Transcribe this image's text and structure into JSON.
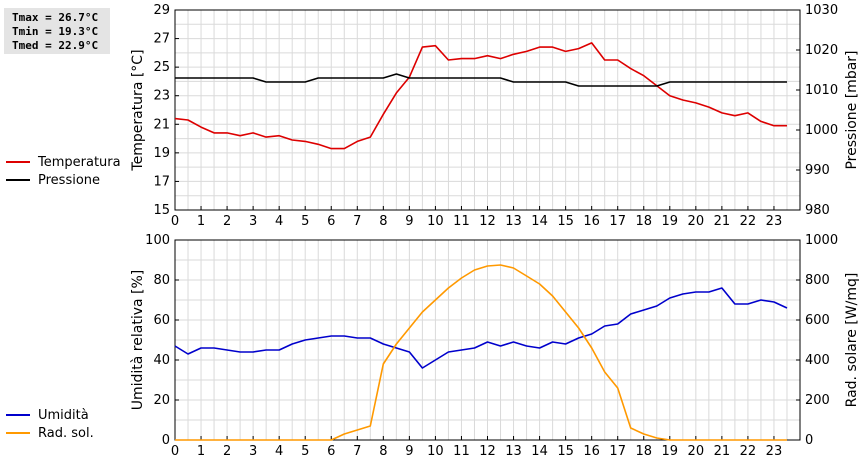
{
  "stats": {
    "tmax": "Tmax = 26.7°C",
    "tmin": "Tmin = 19.3°C",
    "tmed": "Tmed = 22.9°C"
  },
  "chart_data": [
    {
      "type": "line",
      "xlim": [
        0,
        24
      ],
      "x_ticks": [
        "0",
        "1",
        "2",
        "3",
        "4",
        "5",
        "6",
        "7",
        "8",
        "9",
        "10",
        "11",
        "12",
        "13",
        "14",
        "15",
        "16",
        "17",
        "18",
        "19",
        "20",
        "21",
        "22",
        "23"
      ],
      "ylabel_left": "Temperatura [°C]",
      "ylabel_right": "Pressione [mbar]",
      "ylim_left": [
        15,
        29
      ],
      "yticks_left": [
        15,
        17,
        19,
        21,
        23,
        25,
        27,
        29
      ],
      "ylim_right": [
        980,
        1030
      ],
      "yticks_right": [
        980,
        990,
        1000,
        1010,
        1020,
        1030
      ],
      "grid": true,
      "legend_position": "left",
      "series": [
        {
          "name": "Temperatura",
          "axis": "left",
          "color": "#dd0000",
          "x": [
            0,
            0.5,
            1,
            1.5,
            2,
            2.5,
            3,
            3.5,
            4,
            4.5,
            5,
            5.5,
            6,
            6.5,
            7,
            7.5,
            8,
            8.5,
            9,
            9.5,
            10,
            10.5,
            11,
            11.5,
            12,
            12.5,
            13,
            13.5,
            14,
            14.5,
            15,
            15.5,
            16,
            16.5,
            17,
            17.5,
            18,
            18.5,
            19,
            19.5,
            20,
            20.5,
            21,
            21.5,
            22,
            22.5,
            23,
            23.5
          ],
          "y": [
            21.4,
            21.3,
            20.8,
            20.4,
            20.4,
            20.2,
            20.4,
            20.1,
            20.2,
            19.9,
            19.8,
            19.6,
            19.3,
            19.3,
            19.8,
            20.1,
            21.7,
            23.2,
            24.3,
            26.4,
            26.5,
            25.5,
            25.6,
            25.6,
            25.8,
            25.6,
            25.9,
            26.1,
            26.4,
            26.4,
            26.1,
            26.3,
            26.7,
            25.5,
            25.5,
            24.9,
            24.4,
            23.7,
            23.0,
            22.7,
            22.5,
            22.2,
            21.8,
            21.6,
            21.8,
            21.2,
            20.9,
            20.9
          ]
        },
        {
          "name": "Pressione",
          "axis": "right",
          "color": "#000000",
          "x": [
            0,
            1,
            2,
            3,
            3.5,
            4,
            4.5,
            5,
            5.5,
            6,
            6.5,
            7,
            7.5,
            8,
            8.5,
            9,
            9.5,
            10,
            10.5,
            11,
            11.5,
            12,
            12.5,
            13,
            13.5,
            14,
            14.5,
            15,
            15.5,
            16,
            16.5,
            17,
            17.5,
            18,
            18.5,
            19,
            19.5,
            20,
            20.5,
            21,
            21.5,
            22,
            22.5,
            23,
            23.5
          ],
          "y": [
            1013,
            1013,
            1013,
            1013,
            1012,
            1012,
            1012,
            1012,
            1013,
            1013,
            1013,
            1013,
            1013,
            1013,
            1014,
            1013,
            1013,
            1013,
            1013,
            1013,
            1013,
            1013,
            1013,
            1012,
            1012,
            1012,
            1012,
            1012,
            1011,
            1011,
            1011,
            1011,
            1011,
            1011,
            1011,
            1012,
            1012,
            1012,
            1012,
            1012,
            1012,
            1012,
            1012,
            1012,
            1012
          ]
        }
      ]
    },
    {
      "type": "line",
      "xlim": [
        0,
        24
      ],
      "x_ticks": [
        "0",
        "1",
        "2",
        "3",
        "4",
        "5",
        "6",
        "7",
        "8",
        "9",
        "10",
        "11",
        "12",
        "13",
        "14",
        "15",
        "16",
        "17",
        "18",
        "19",
        "20",
        "21",
        "22",
        "23"
      ],
      "ylabel_left": "Umidità relativa [%]",
      "ylabel_right": "Rad. solare [W/mq]",
      "ylim_left": [
        0,
        100
      ],
      "yticks_left": [
        0,
        20,
        40,
        60,
        80,
        100
      ],
      "ylim_right": [
        0,
        1000
      ],
      "yticks_right": [
        0,
        200,
        400,
        600,
        800,
        1000
      ],
      "grid": true,
      "legend_position": "left",
      "series": [
        {
          "name": "Umidità",
          "axis": "left",
          "color": "#0000cc",
          "x": [
            0,
            0.5,
            1,
            1.5,
            2,
            2.5,
            3,
            3.5,
            4,
            4.5,
            5,
            5.5,
            6,
            6.5,
            7,
            7.5,
            8,
            8.5,
            9,
            9.5,
            10,
            10.5,
            11,
            11.5,
            12,
            12.5,
            13,
            13.5,
            14,
            14.5,
            15,
            15.5,
            16,
            16.5,
            17,
            17.5,
            18,
            18.5,
            19,
            19.5,
            20,
            20.5,
            21,
            21.5,
            22,
            22.5,
            23,
            23.5
          ],
          "y": [
            47,
            43,
            46,
            46,
            45,
            44,
            44,
            45,
            45,
            48,
            50,
            51,
            52,
            52,
            51,
            51,
            48,
            46,
            44,
            36,
            40,
            44,
            45,
            46,
            49,
            47,
            49,
            47,
            46,
            49,
            48,
            51,
            53,
            57,
            58,
            63,
            65,
            67,
            71,
            73,
            74,
            74,
            76,
            68,
            68,
            70,
            69,
            66
          ]
        },
        {
          "name": "Rad. sol.",
          "axis": "right",
          "color": "#ff9900",
          "x": [
            0,
            1,
            2,
            3,
            4,
            5,
            6,
            6.5,
            7,
            7.5,
            8,
            8.5,
            9,
            9.5,
            10,
            10.5,
            11,
            11.5,
            12,
            12.5,
            13,
            13.5,
            14,
            14.5,
            15,
            15.5,
            16,
            16.5,
            17,
            17.5,
            18,
            18.5,
            19,
            20,
            21,
            22,
            23,
            23.5
          ],
          "y": [
            0,
            0,
            0,
            0,
            0,
            0,
            0,
            30,
            50,
            70,
            380,
            480,
            560,
            640,
            700,
            760,
            810,
            850,
            870,
            875,
            860,
            820,
            780,
            720,
            640,
            560,
            460,
            340,
            260,
            60,
            30,
            10,
            0,
            0,
            0,
            0,
            0,
            0
          ]
        }
      ]
    }
  ]
}
